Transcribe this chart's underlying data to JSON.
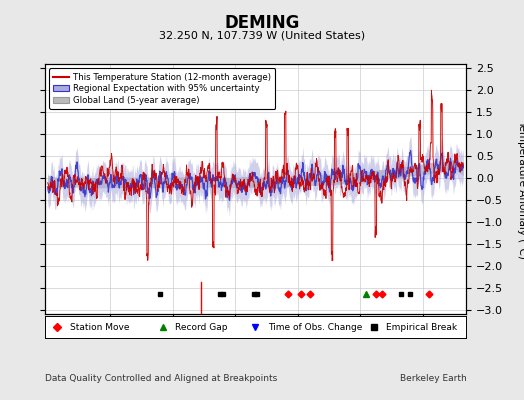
{
  "title": "DEMING",
  "subtitle": "32.250 N, 107.739 W (United States)",
  "ylabel": "Temperature Anomaly (°C)",
  "xlabel_note": "Data Quality Controlled and Aligned at Breakpoints",
  "credit": "Berkeley Earth",
  "year_start": 1880,
  "year_end": 2013,
  "ylim": [
    -3.1,
    2.6
  ],
  "yticks": [
    -3,
    -2.5,
    -2,
    -1.5,
    -1,
    -0.5,
    0,
    0.5,
    1,
    1.5,
    2,
    2.5
  ],
  "xticks": [
    1900,
    1920,
    1940,
    1960,
    1980,
    2000
  ],
  "bg_color": "#e8e8e8",
  "plot_bg_color": "#ffffff",
  "grid_color": "#cccccc",
  "station_color": "#cc0000",
  "regional_color": "#3333cc",
  "regional_fill": "#aaaadd",
  "global_color": "#bbbbbb",
  "station_moves": [
    1957,
    1961,
    1964,
    1985,
    1987,
    2002
  ],
  "record_gaps": [
    1982
  ],
  "time_obs_changes": [],
  "empirical_breaks": [
    1916,
    1935,
    1936,
    1946,
    1947,
    1993,
    1996
  ],
  "red_line_years": [
    1929
  ]
}
